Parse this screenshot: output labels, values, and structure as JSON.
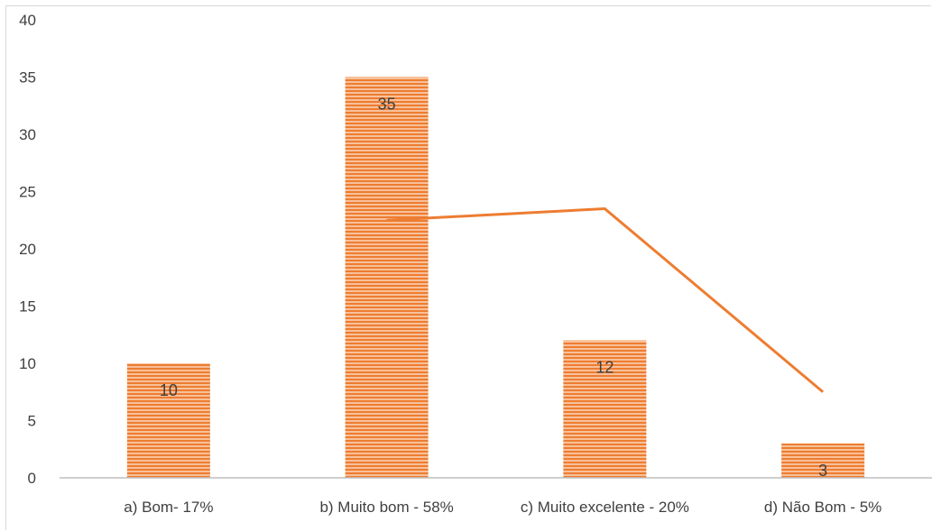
{
  "chart_data": {
    "type": "bar",
    "categories": [
      "a) Bom- 17%",
      "b) Muito bom - 58%",
      "c) Muito excelente - 20%",
      "d) Não Bom - 5%"
    ],
    "values": [
      10,
      35,
      12,
      3
    ],
    "data_labels": [
      "10",
      "35",
      "12",
      "3"
    ],
    "line_values": [
      null,
      22.5,
      23.5,
      7.5
    ],
    "ylim": [
      0,
      40
    ],
    "yticks": [
      0,
      5,
      10,
      15,
      20,
      25,
      30,
      35,
      40
    ],
    "ytick_labels": [
      "0",
      "5",
      "10",
      "15",
      "20",
      "25",
      "30",
      "35",
      "40"
    ],
    "title": "",
    "xlabel": "",
    "ylabel": "",
    "grid": false,
    "legend": "none",
    "colors": {
      "bar": "#f4a26a",
      "bar_stripe": "#ed7d31",
      "line": "#ed7d31",
      "axis": "#bfbfbf",
      "text": "#404040"
    }
  }
}
